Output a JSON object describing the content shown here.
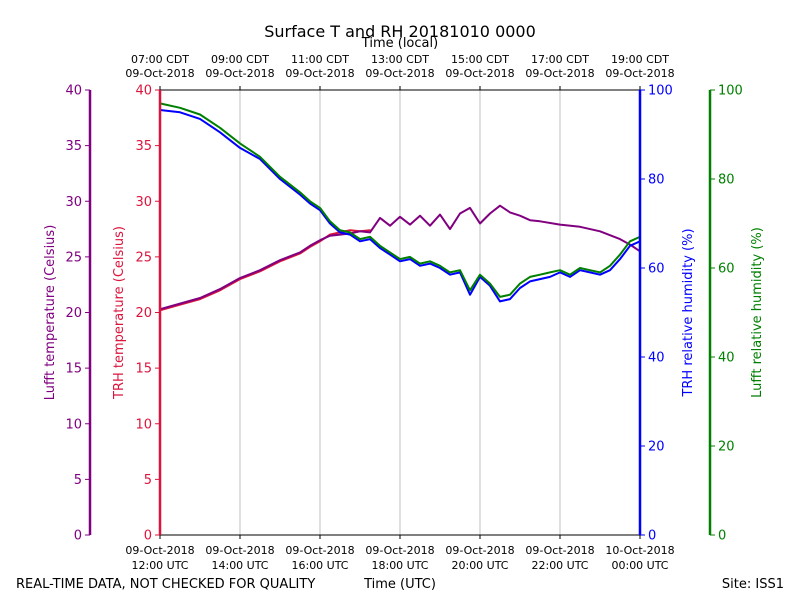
{
  "chart_data": {
    "type": "line",
    "title": "Surface T and RH 20181010 0000",
    "footer": {
      "left": "REAL-TIME DATA, NOT CHECKED FOR QUALITY",
      "center": "Time (UTC)",
      "right": "Site: ISS1"
    },
    "x_top_label": "Time (local)",
    "x_ticks": [
      {
        "utc": [
          "09-Oct-2018",
          "12:00 UTC"
        ],
        "local": [
          "07:00 CDT",
          "09-Oct-2018"
        ]
      },
      {
        "utc": [
          "09-Oct-2018",
          "14:00 UTC"
        ],
        "local": [
          "09:00 CDT",
          "09-Oct-2018"
        ]
      },
      {
        "utc": [
          "09-Oct-2018",
          "16:00 UTC"
        ],
        "local": [
          "11:00 CDT",
          "09-Oct-2018"
        ]
      },
      {
        "utc": [
          "09-Oct-2018",
          "18:00 UTC"
        ],
        "local": [
          "13:00 CDT",
          "09-Oct-2018"
        ]
      },
      {
        "utc": [
          "09-Oct-2018",
          "20:00 UTC"
        ],
        "local": [
          "15:00 CDT",
          "09-Oct-2018"
        ]
      },
      {
        "utc": [
          "09-Oct-2018",
          "22:00 UTC"
        ],
        "local": [
          "17:00 CDT",
          "09-Oct-2018"
        ]
      },
      {
        "utc": [
          "10-Oct-2018",
          "00:00 UTC"
        ],
        "local": [
          "19:00 CDT",
          "09-Oct-2018"
        ]
      }
    ],
    "x_range_hours_utc": [
      12,
      24
    ],
    "grid": "vertical",
    "axes": {
      "lufft_temp": {
        "label": "Lufft temperature (Celsius)",
        "range": [
          0,
          40
        ],
        "ticks": [
          "0",
          "5",
          "10",
          "15",
          "20",
          "25",
          "30",
          "35",
          "40"
        ],
        "color": "#800080"
      },
      "trh_temp": {
        "label": "TRH temperature (Celsius)",
        "range": [
          0,
          40
        ],
        "ticks": [
          "0",
          "5",
          "10",
          "15",
          "20",
          "25",
          "30",
          "35",
          "40"
        ],
        "color": "#dc143c"
      },
      "trh_rh": {
        "label": "TRH relative humidity (%)",
        "range": [
          0,
          100
        ],
        "ticks": [
          "0",
          "20",
          "40",
          "60",
          "80",
          "100"
        ],
        "color": "#0000ff"
      },
      "lufft_rh": {
        "label": "Lufft relative humidity (%)",
        "range": [
          0,
          100
        ],
        "ticks": [
          "0",
          "20",
          "40",
          "60",
          "80",
          "100"
        ],
        "color": "#008000"
      }
    },
    "series": [
      {
        "name": "TRH temperature",
        "axis": "trh_temp",
        "color": "#dc143c",
        "x": [
          12.0,
          12.5,
          13.0,
          13.5,
          14.0,
          14.5,
          15.0,
          15.5,
          15.75,
          16.0,
          16.25,
          16.5,
          16.75,
          17.0,
          17.25
        ],
        "y": [
          20.2,
          20.7,
          21.2,
          22.0,
          23.0,
          23.7,
          24.6,
          25.3,
          25.9,
          26.4,
          27.0,
          27.2,
          27.4,
          27.3,
          27.4
        ]
      },
      {
        "name": "Lufft temperature",
        "axis": "lufft_temp",
        "color": "#800080",
        "x": [
          12.0,
          12.5,
          13.0,
          13.5,
          14.0,
          14.5,
          15.0,
          15.5,
          15.75,
          16.0,
          16.25,
          16.5,
          16.75,
          17.0,
          17.25,
          17.5,
          17.75,
          18.0,
          18.25,
          18.5,
          18.75,
          19.0,
          19.25,
          19.5,
          19.75,
          20.0,
          20.25,
          20.5,
          20.75,
          21.0,
          21.25,
          21.5,
          22.0,
          22.5,
          23.0,
          23.5,
          23.75,
          24.0
        ],
        "y": [
          20.3,
          20.8,
          21.3,
          22.1,
          23.1,
          23.8,
          24.7,
          25.4,
          26.0,
          26.5,
          26.9,
          27.0,
          27.1,
          27.3,
          27.2,
          28.5,
          27.8,
          28.6,
          27.9,
          28.7,
          27.8,
          28.8,
          27.5,
          28.9,
          29.4,
          28.0,
          28.9,
          29.6,
          29.0,
          28.7,
          28.3,
          28.2,
          27.9,
          27.7,
          27.3,
          26.6,
          26.1,
          25.5
        ]
      },
      {
        "name": "TRH relative humidity",
        "axis": "trh_rh",
        "color": "#0000ff",
        "x": [
          12.0,
          12.5,
          13.0,
          13.5,
          14.0,
          14.5,
          15.0,
          15.5,
          15.75,
          16.0,
          16.25,
          16.5,
          16.75,
          17.0,
          17.25,
          17.5,
          17.75,
          18.0,
          18.25,
          18.5,
          18.75,
          19.0,
          19.25,
          19.5,
          19.75,
          20.0,
          20.25,
          20.5,
          20.75,
          21.0,
          21.25,
          21.5,
          21.75,
          22.0,
          22.25,
          22.5,
          22.75,
          23.0,
          23.25,
          23.5,
          23.75,
          24.0
        ],
        "y": [
          95.5,
          95.0,
          93.5,
          90.5,
          87.0,
          84.5,
          80.0,
          76.5,
          74.5,
          73.0,
          70.0,
          68.0,
          67.5,
          66.0,
          66.5,
          64.5,
          63.0,
          61.5,
          62.0,
          60.5,
          61.0,
          60.0,
          58.5,
          59.0,
          54.0,
          58.0,
          56.0,
          52.5,
          53.0,
          55.5,
          57.0,
          57.5,
          58.0,
          59.0,
          58.0,
          59.5,
          59.0,
          58.5,
          59.5,
          62.0,
          65.0,
          66.0
        ]
      },
      {
        "name": "Lufft relative humidity",
        "axis": "lufft_rh",
        "color": "#008000",
        "x": [
          12.0,
          12.5,
          13.0,
          13.5,
          14.0,
          14.5,
          15.0,
          15.5,
          15.75,
          16.0,
          16.25,
          16.5,
          16.75,
          17.0,
          17.25,
          17.5,
          17.75,
          18.0,
          18.25,
          18.5,
          18.75,
          19.0,
          19.25,
          19.5,
          19.75,
          20.0,
          20.25,
          20.5,
          20.75,
          21.0,
          21.25,
          21.5,
          21.75,
          22.0,
          22.25,
          22.5,
          22.75,
          23.0,
          23.25,
          23.5,
          23.75,
          24.0
        ],
        "y": [
          97.0,
          96.0,
          94.5,
          91.5,
          88.0,
          85.0,
          80.5,
          77.0,
          75.0,
          73.5,
          70.5,
          68.5,
          68.0,
          66.5,
          67.0,
          65.0,
          63.5,
          62.0,
          62.5,
          61.0,
          61.5,
          60.5,
          59.0,
          59.5,
          55.0,
          58.5,
          56.5,
          53.5,
          54.0,
          56.5,
          58.0,
          58.5,
          59.0,
          59.5,
          58.5,
          60.0,
          59.5,
          59.0,
          60.5,
          63.0,
          66.0,
          67.0
        ]
      }
    ]
  }
}
